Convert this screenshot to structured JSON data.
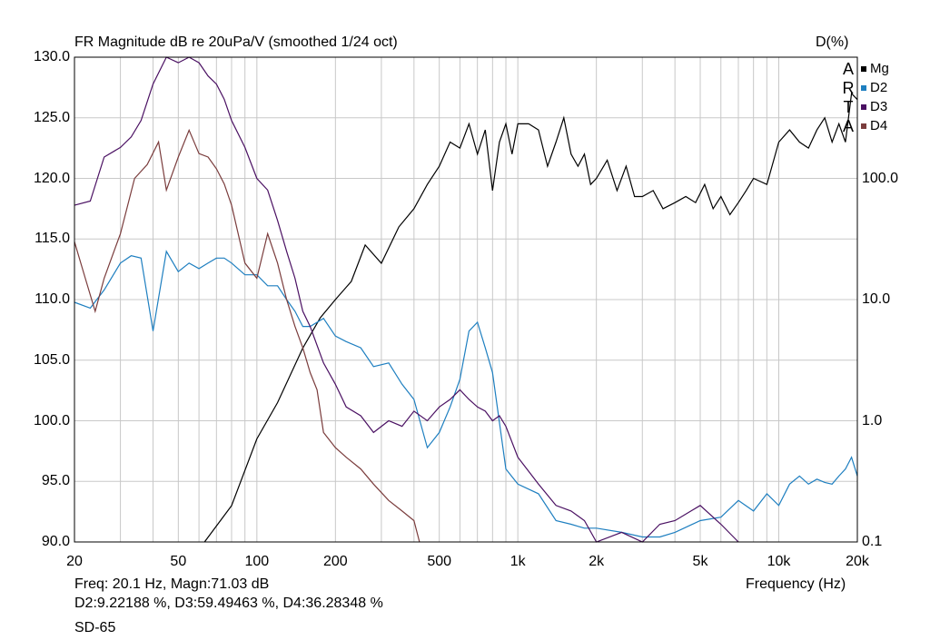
{
  "header": {
    "title": "FR Magnitude dB re 20uPa/V (smoothed 1/24 oct)",
    "right_axis_title": "D(%)"
  },
  "logo_letters": [
    "A",
    "R",
    "T",
    "A"
  ],
  "footer": {
    "readout_line1": "Freq: 20.1 Hz, Magn:71.03 dB",
    "readout_line2": "D2:9.22188 %, D3:59.49463 %, D4:36.28348 %",
    "device": "SD-65",
    "xlabel": "Frequency (Hz)"
  },
  "chart_data": {
    "type": "line",
    "title": "FR Magnitude dB re 20uPa/V (smoothed 1/24 oct)",
    "xlabel": "Frequency (Hz)",
    "ylabel": "",
    "y2label": "D(%)",
    "x_scale": "log",
    "xlim": [
      20,
      20000
    ],
    "ylim": [
      90,
      130
    ],
    "y2_scale": "log",
    "y2lim": [
      0.1,
      1000
    ],
    "grid": true,
    "legend_position": "top-right",
    "x_ticks": [
      20,
      50,
      100,
      200,
      500,
      1000,
      2000,
      5000,
      10000,
      20000
    ],
    "x_tick_labels": [
      "20",
      "50",
      "100",
      "200",
      "500",
      "1k",
      "2k",
      "5k",
      "10k",
      "20k"
    ],
    "y_ticks": [
      90,
      95,
      100,
      105,
      110,
      115,
      120,
      125,
      130
    ],
    "y_tick_labels": [
      "90.0",
      "95.0",
      "100.0",
      "105.0",
      "110.0",
      "115.0",
      "120.0",
      "125.0",
      "130.0"
    ],
    "y2_ticks": [
      0.1,
      1,
      10,
      100
    ],
    "y2_tick_labels": [
      "0.1",
      "1.0",
      "10.0",
      "100.0"
    ],
    "series": [
      {
        "name": "Mg",
        "color": "#000000",
        "axis": "left",
        "x": [
          63,
          80,
          100,
          120,
          150,
          175,
          200,
          230,
          260,
          300,
          350,
          400,
          450,
          500,
          550,
          600,
          650,
          700,
          750,
          800,
          850,
          900,
          950,
          1000,
          1100,
          1200,
          1300,
          1400,
          1500,
          1600,
          1700,
          1800,
          1900,
          2000,
          2200,
          2400,
          2600,
          2800,
          3000,
          3300,
          3600,
          4000,
          4400,
          4800,
          5200,
          5600,
          6000,
          6500,
          7000,
          7500,
          8000,
          9000,
          10000,
          11000,
          12000,
          13000,
          14000,
          15000,
          16000,
          17000,
          18000,
          19000,
          20000
        ],
        "y": [
          80,
          93,
          98.5,
          101.5,
          106,
          108.5,
          110,
          111.5,
          114.5,
          113,
          116,
          117.5,
          119.5,
          121,
          123,
          122.5,
          124.5,
          122,
          124,
          119,
          123,
          124.5,
          122,
          124.5,
          124.5,
          124,
          121,
          123,
          125,
          122,
          121,
          122,
          119.5,
          120,
          121.5,
          119,
          121,
          118.5,
          118.5,
          119,
          117.5,
          118,
          118.5,
          118,
          119.5,
          117.5,
          118.5,
          117,
          118,
          119,
          120,
          119.5,
          123,
          124,
          123,
          122.5,
          124,
          125,
          123,
          124.5,
          123,
          127,
          126.5
        ]
      },
      {
        "name": "D2",
        "color": "#1e7fc0",
        "axis": "right",
        "x": [
          20,
          23,
          26,
          30,
          33,
          36,
          40,
          45,
          50,
          55,
          60,
          65,
          70,
          75,
          80,
          90,
          100,
          110,
          120,
          130,
          140,
          150,
          160,
          180,
          200,
          220,
          250,
          280,
          320,
          360,
          400,
          450,
          500,
          550,
          600,
          650,
          700,
          750,
          800,
          900,
          1000,
          1200,
          1400,
          1600,
          1800,
          2000,
          2500,
          3000,
          3500,
          4000,
          5000,
          6000,
          7000,
          8000,
          9000,
          10000,
          11000,
          12000,
          13000,
          14000,
          15000,
          16000,
          17000,
          18000,
          19000,
          20000
        ],
        "y": [
          9.5,
          8.5,
          12,
          20,
          23,
          22,
          5.5,
          25,
          17,
          20,
          18,
          20,
          22,
          22,
          20,
          16,
          16,
          13,
          13,
          10,
          8,
          6,
          6,
          7,
          5,
          4.5,
          4,
          2.8,
          3,
          2,
          1.5,
          0.6,
          0.8,
          1.3,
          2.2,
          5.5,
          6.5,
          4,
          2.5,
          0.4,
          0.3,
          0.25,
          0.15,
          0.14,
          0.13,
          0.13,
          0.12,
          0.11,
          0.11,
          0.12,
          0.15,
          0.16,
          0.22,
          0.18,
          0.25,
          0.2,
          0.3,
          0.35,
          0.3,
          0.33,
          0.31,
          0.3,
          0.35,
          0.4,
          0.5,
          0.35
        ]
      },
      {
        "name": "D3",
        "color": "#4a1062",
        "axis": "right",
        "x": [
          20,
          23,
          26,
          30,
          33,
          36,
          40,
          45,
          50,
          55,
          60,
          65,
          70,
          75,
          80,
          90,
          100,
          110,
          120,
          130,
          140,
          150,
          160,
          180,
          200,
          220,
          250,
          280,
          320,
          360,
          400,
          450,
          500,
          550,
          600,
          650,
          700,
          750,
          800,
          850,
          900,
          1000,
          1200,
          1400,
          1600,
          1800,
          2000,
          2500,
          3000,
          3500,
          4000,
          5000,
          6000,
          7000
        ],
        "y": [
          60,
          65,
          150,
          180,
          220,
          300,
          600,
          1100,
          900,
          1000,
          900,
          700,
          600,
          450,
          300,
          180,
          100,
          80,
          45,
          25,
          15,
          8,
          6,
          3,
          2,
          1.3,
          1.1,
          0.8,
          1.0,
          0.9,
          1.2,
          1.0,
          1.3,
          1.5,
          1.8,
          1.5,
          1.3,
          1.2,
          1.0,
          1.1,
          0.9,
          0.5,
          0.3,
          0.2,
          0.18,
          0.15,
          0.1,
          0.12,
          0.1,
          0.14,
          0.15,
          0.2,
          0.14,
          0.1
        ]
      },
      {
        "name": "D4",
        "color": "#7a3c3c",
        "axis": "right",
        "x": [
          20,
          22,
          24,
          26,
          30,
          34,
          38,
          42,
          45,
          50,
          55,
          60,
          65,
          70,
          75,
          80,
          90,
          100,
          110,
          120,
          130,
          140,
          150,
          160,
          170,
          180,
          200,
          220,
          250,
          280,
          320,
          360,
          400,
          420
        ],
        "y": [
          30,
          15,
          8,
          15,
          35,
          100,
          130,
          200,
          80,
          150,
          250,
          160,
          150,
          120,
          90,
          60,
          20,
          15,
          35,
          20,
          10,
          6,
          4,
          2.5,
          1.8,
          0.8,
          0.6,
          0.5,
          0.4,
          0.3,
          0.22,
          0.18,
          0.15,
          0.1
        ]
      }
    ]
  }
}
